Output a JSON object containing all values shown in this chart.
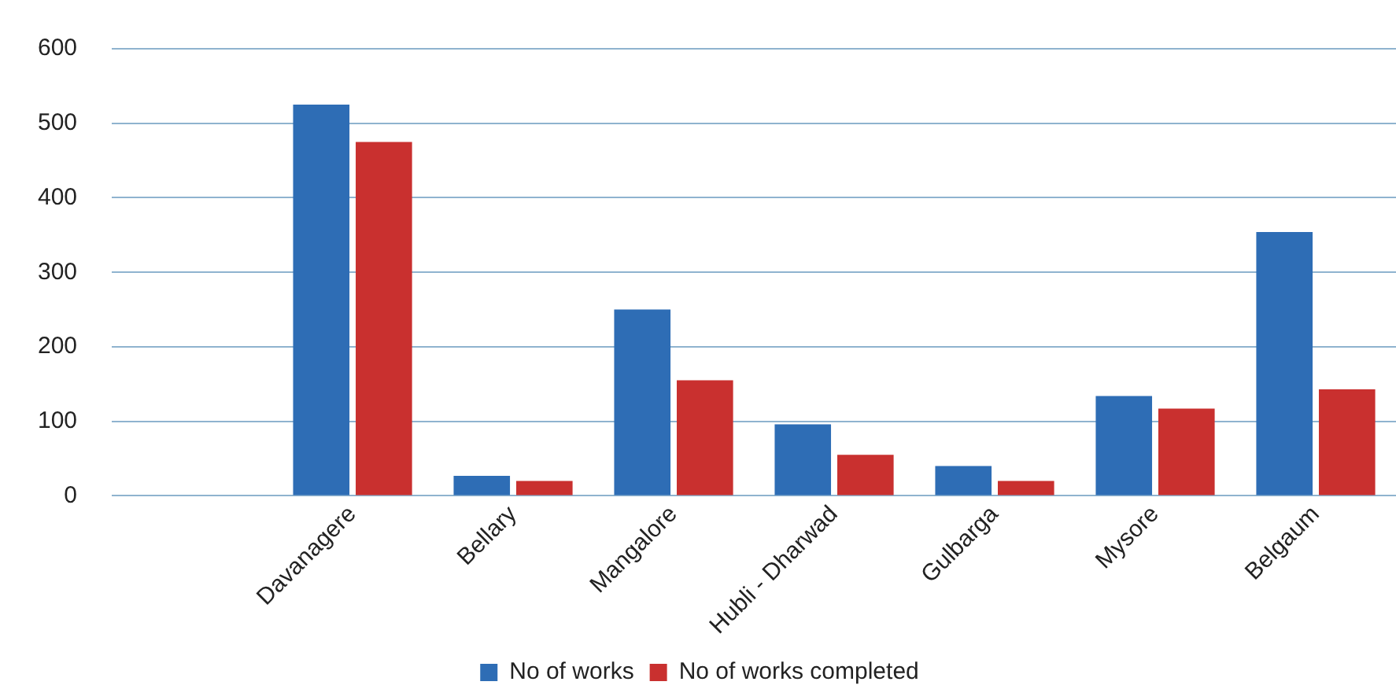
{
  "chart_data": {
    "type": "bar",
    "categories": [
      null,
      "Davanagere",
      "Bellary",
      "Mangalore",
      "Hubli - Dharwad",
      "Gulbarga",
      "Mysore",
      "Belgaum"
    ],
    "series": [
      {
        "name": "No of works",
        "color": "#2e6db5",
        "values": [
          null,
          525,
          27,
          250,
          96,
          40,
          134,
          354
        ]
      },
      {
        "name": "No of works completed",
        "color": "#c9302f",
        "values": [
          null,
          475,
          20,
          155,
          55,
          20,
          117,
          143
        ]
      }
    ],
    "ylim": [
      0,
      600
    ],
    "yticks": [
      0,
      100,
      200,
      300,
      400,
      500,
      600
    ],
    "grid": "y",
    "legend": "bottom"
  }
}
